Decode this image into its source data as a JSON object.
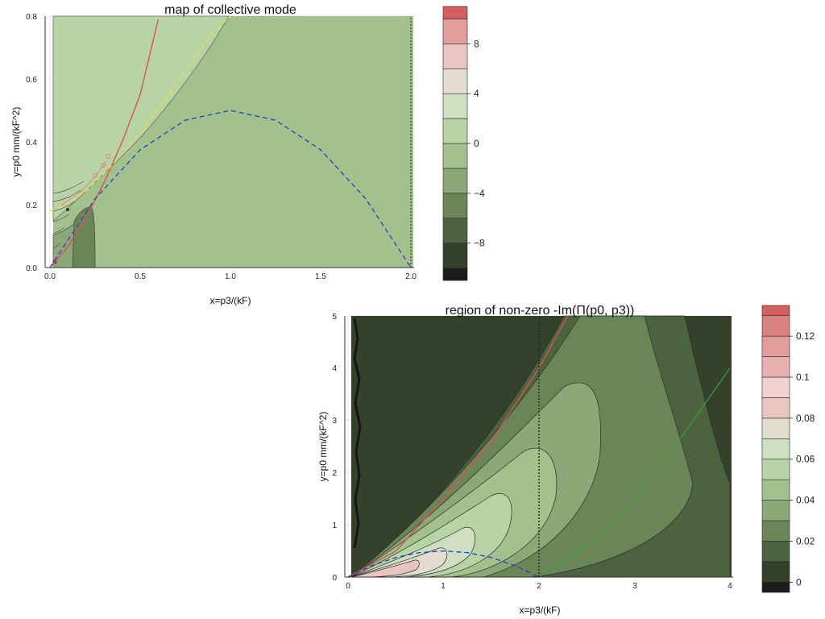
{
  "chart_data": [
    {
      "type": "contour",
      "title": "map of collective mode",
      "xlabel": "x=p3/(kF)",
      "ylabel": "y=p0 mm/(kF^2)",
      "xlim": [
        -0.02,
        2.02
      ],
      "ylim": [
        0,
        0.8
      ],
      "xticks": [
        0.0,
        0.5,
        1.0,
        1.5,
        2.0
      ],
      "xtick_labels": [
        "0.0",
        "0.5",
        "1.0",
        "1.5",
        "2.0"
      ],
      "yticks": [
        0.0,
        0.2,
        0.4,
        0.6,
        0.8
      ],
      "ytick_labels": [
        "0.0",
        "0.2",
        "0.4",
        "0.6",
        "0.8"
      ],
      "grid": true,
      "colorbar": {
        "levels": [
          -11,
          -10,
          -8,
          -6,
          -4,
          -2,
          0,
          2,
          4,
          6,
          8,
          10,
          11
        ],
        "tick_values": [
          -8,
          -4,
          0,
          4,
          8
        ],
        "tick_labels": [
          "−8",
          "−4",
          "0",
          "4",
          "8"
        ],
        "colors": [
          "#1c1c1c",
          "#34412b",
          "#4c6340",
          "#6a8656",
          "#8aa977",
          "#a2c18d",
          "#b8d3a4",
          "#cfdfc2",
          "#e2ddcf",
          "#e9c5c1",
          "#e19c9c",
          "#d55f5f"
        ]
      },
      "region_fill_colors": {
        "left_upper": "#b8d3a4",
        "right_lower": "#a2c18d",
        "bottom_band": "#8aa977",
        "small_pocket": "#6a8656"
      },
      "curves": [
        {
          "style": "solid",
          "color": "#d9534f",
          "x": [
            0.0,
            0.1,
            0.2,
            0.3,
            0.4,
            0.5,
            0.6
          ],
          "y": [
            0.0,
            0.067,
            0.16,
            0.27,
            0.4,
            0.55,
            0.79
          ]
        },
        {
          "style": "dashed",
          "color": "#e8e040",
          "x": [
            0.0,
            0.1,
            0.2,
            0.3,
            0.4,
            0.5,
            0.6,
            0.7,
            0.8,
            0.9,
            1.0
          ],
          "y": [
            0.18,
            0.205,
            0.245,
            0.3,
            0.36,
            0.43,
            0.505,
            0.585,
            0.665,
            0.745,
            0.82
          ]
        },
        {
          "style": "dashed",
          "color": "#1f3fd1",
          "x": [
            0.0,
            0.25,
            0.5,
            0.75,
            1.0,
            1.25,
            1.5,
            1.75,
            2.0
          ],
          "y": [
            0.0,
            0.219,
            0.375,
            0.469,
            0.5,
            0.469,
            0.375,
            0.219,
            0.0
          ]
        },
        {
          "style": "dotted",
          "color": "#333333",
          "x": [
            2.0,
            2.0
          ],
          "y": [
            0.0,
            0.8
          ]
        }
      ]
    },
    {
      "type": "contour",
      "title": "region of non-zero -Im(Π(p0, p3))",
      "xlabel": "x=p3/(kF)",
      "ylabel": "y=p0 mm/(kF^2)",
      "xlim": [
        -0.05,
        4.05
      ],
      "ylim": [
        0,
        5
      ],
      "xticks": [
        0,
        1,
        2,
        3,
        4
      ],
      "xtick_labels": [
        "0",
        "1",
        "2",
        "3",
        "4"
      ],
      "yticks": [
        0,
        1,
        2,
        3,
        4,
        5
      ],
      "ytick_labels": [
        "0",
        "1",
        "2",
        "3",
        "4",
        "5"
      ],
      "grid": true,
      "colorbar": {
        "levels": [
          -0.005,
          0,
          0.01,
          0.02,
          0.03,
          0.04,
          0.05,
          0.06,
          0.07,
          0.08,
          0.09,
          0.1,
          0.11,
          0.12,
          0.13,
          0.135
        ],
        "tick_values": [
          0,
          0.02,
          0.04,
          0.06,
          0.08,
          0.1,
          0.12
        ],
        "tick_labels": [
          "0",
          "0.02",
          "0.04",
          "0.06",
          "0.08",
          "0.1",
          "0.12"
        ],
        "colors": [
          "#1c1c1c",
          "#34412b",
          "#4c6340",
          "#6a8656",
          "#8aa977",
          "#a2c18d",
          "#b8d3a4",
          "#cfdfc2",
          "#e2ddcf",
          "#e9c5c1",
          "#f0d2d2",
          "#e9b0b0",
          "#e19c9c",
          "#d98080",
          "#d55f5f"
        ]
      },
      "curves": [
        {
          "style": "solid",
          "color": "#d9534f",
          "x": [
            0.0,
            0.5,
            1.0,
            1.5,
            2.0,
            2.3
          ],
          "y": [
            0.0,
            0.5,
            1.5,
            2.6,
            4.0,
            5.0
          ]
        },
        {
          "style": "solid",
          "color": "#3aa03a",
          "x": [
            2.0,
            2.5,
            3.0,
            3.5,
            4.0
          ],
          "y": [
            0.0,
            0.6,
            1.5,
            2.7,
            4.0
          ]
        },
        {
          "style": "dashed",
          "color": "#1f3fd1",
          "x": [
            0.0,
            0.25,
            0.5,
            0.75,
            1.0,
            1.25,
            1.5,
            1.75,
            2.0
          ],
          "y": [
            0.0,
            0.219,
            0.375,
            0.469,
            0.5,
            0.469,
            0.375,
            0.219,
            0.0
          ]
        },
        {
          "style": "dotted",
          "color": "#222222",
          "x": [
            2.0,
            2.0
          ],
          "y": [
            0.0,
            5.0
          ]
        }
      ]
    }
  ]
}
